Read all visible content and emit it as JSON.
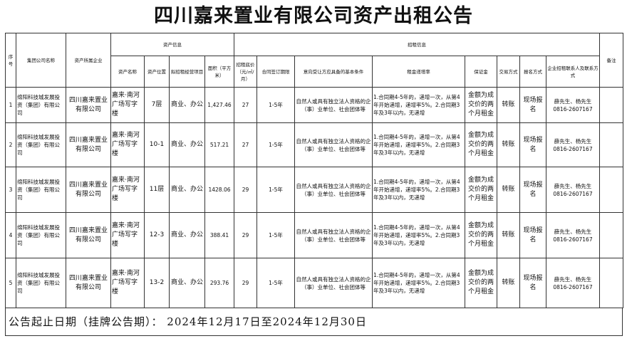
{
  "title": "四川嘉来置业有限公司资产出租公告",
  "headers": {
    "seq": "序号",
    "group": "集团公司名称",
    "owner": "资产所属企业",
    "asset_info": "资产信息",
    "rent_info": "招租信息",
    "remark": "备注",
    "asset_name": "资产名称",
    "asset_location": "资产位置",
    "business": "拟招租经营项目",
    "area": "面积（平方米）",
    "base_price": "招租底价（元/㎡/月）",
    "term": "合同签订期限",
    "conditions": "意向受让方应具备的基本条件",
    "increase": "租金递增率",
    "deposit": "保证金",
    "trade": "交易方式",
    "signup": "报名方式",
    "contact": "企业招租联系人及联系方式"
  },
  "rows": [
    {
      "seq": "1",
      "group": "绵阳科技城发展投资（集团）有限公司",
      "owner": "四川嘉来置业有限公司",
      "asset_name": "嘉来·南河广场写字楼",
      "location": "7层",
      "business": "商业、办公",
      "area": "1,427.46",
      "price": "27",
      "term": "1-5年",
      "conditions": "自然人或具有独立法人资格的企（事）业单位、社会团体等",
      "increase": "1.合同期4-5年的，递增一次，从第4年开始递增，递增率5%。2.合同期3年及3年以内，无递增",
      "deposit": "金额为成交价的两个月租金",
      "trade": "转账",
      "signup": "现场报名",
      "contact": "薛先生、杨先生 0816-2607167",
      "remark": ""
    },
    {
      "seq": "2",
      "group": "绵阳科技城发展投资（集团）有限公司",
      "owner": "四川嘉来置业有限公司",
      "asset_name": "嘉来·南河广场写字楼",
      "location": "10-1",
      "business": "商业、办公",
      "area": "517.21",
      "price": "27",
      "term": "1-5年",
      "conditions": "自然人或具有独立法人资格的企（事）业单位、社会团体等",
      "increase": "1.合同期4-5年的，递增一次，从第4年开始递增，递增率5%。2.合同期3年及3年以内，无递增",
      "deposit": "金额为成交价的两个月租金",
      "trade": "转账",
      "signup": "现场报名",
      "contact": "薛先生、杨先生 0816-2607167",
      "remark": ""
    },
    {
      "seq": "3",
      "group": "绵阳科技城发展投资（集团）有限公司",
      "owner": "四川嘉来置业有限公司",
      "asset_name": "嘉来·南河广场写字楼",
      "location": "11层",
      "business": "商业、办公",
      "area": "1428.06",
      "price": "29",
      "term": "1-5年",
      "conditions": "自然人或具有独立法人资格的企（事）业单位、社会团体等",
      "increase": "1.合同期4-5年的，递增一次，从第4年开始递增，递增率5%。2.合同期3年及3年以内，无递增",
      "deposit": "金额为成交价的两个月租金",
      "trade": "转账",
      "signup": "现场报名",
      "contact": "薛先生、杨先生 0816-2607167",
      "remark": ""
    },
    {
      "seq": "4",
      "group": "绵阳科技城发展投资（集团）有限公司",
      "owner": "四川嘉来置业有限公司",
      "asset_name": "嘉来·南河广场写字楼",
      "location": "12-3",
      "business": "商业、办公",
      "area": "388.41",
      "price": "29",
      "term": "1-5年",
      "conditions": "自然人或具有独立法人资格的企（事）业单位、社会团体等",
      "increase": "1.合同期4-5年的，递增一次，从第4年开始递增，递增率5%。2.合同期3年及3年以内，无递增",
      "deposit": "金额为成交价的两个月租金",
      "trade": "转账",
      "signup": "现场报名",
      "contact": "薛先生、杨先生 0816-2607167",
      "remark": ""
    },
    {
      "seq": "5",
      "group": "绵阳科技城发展投资（集团）有限公司",
      "owner": "四川嘉来置业有限公司",
      "asset_name": "嘉来·南河广场写字楼",
      "location": "13-2",
      "business": "商业、办公",
      "area": "293.76",
      "price": "29",
      "term": "1-5年",
      "conditions": "自然人或具有独立法人资格的企（事）业单位、社会团体等",
      "increase": "1.合同期4-5年的，递增一次，从第4年开始递增，递增率5%。2.合同期3年及3年以内，无递增",
      "deposit": "金额为成交价的两个月租金",
      "trade": "转账",
      "signup": "现场报名",
      "contact": "薛先生、杨先生 0816-2607167",
      "remark": ""
    }
  ],
  "footer": "公告起止日期（挂牌公告期）： 2024年12月17日至2024年12月30日"
}
